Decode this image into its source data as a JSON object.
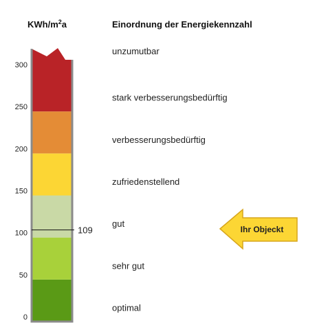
{
  "chart_data": {
    "type": "bar",
    "unit_label": "KWh/m²a",
    "title": "Einordnung der Energiekennzahl",
    "y_ticks": [
      0,
      50,
      100,
      150,
      200,
      250,
      300
    ],
    "ylim": [
      0,
      300
    ],
    "bands": [
      {
        "label": "optimal",
        "min": 0,
        "max": 50,
        "color": "#5a9a16"
      },
      {
        "label": "sehr gut",
        "min": 50,
        "max": 100,
        "color": "#a8d13a"
      },
      {
        "label": "gut",
        "min": 100,
        "max": 150,
        "color": "#c9d9a6"
      },
      {
        "label": "zufriedenstellend",
        "min": 150,
        "max": 200,
        "color": "#fcd634"
      },
      {
        "label": "verbesserungsbedürftig",
        "min": 200,
        "max": 250,
        "color": "#e48c36"
      },
      {
        "label": "stark verbesserungsbedürftig",
        "min": 250,
        "max": 300,
        "color": "#b92327"
      },
      {
        "label": "unzumutbar",
        "min": 300,
        "max": null,
        "color": "#b92327"
      }
    ],
    "marker": {
      "value": 109,
      "label": "109"
    },
    "pointer": {
      "label": "Ihr Objeckt",
      "fill": "#fcd634",
      "stroke": "#d7a51c"
    }
  }
}
